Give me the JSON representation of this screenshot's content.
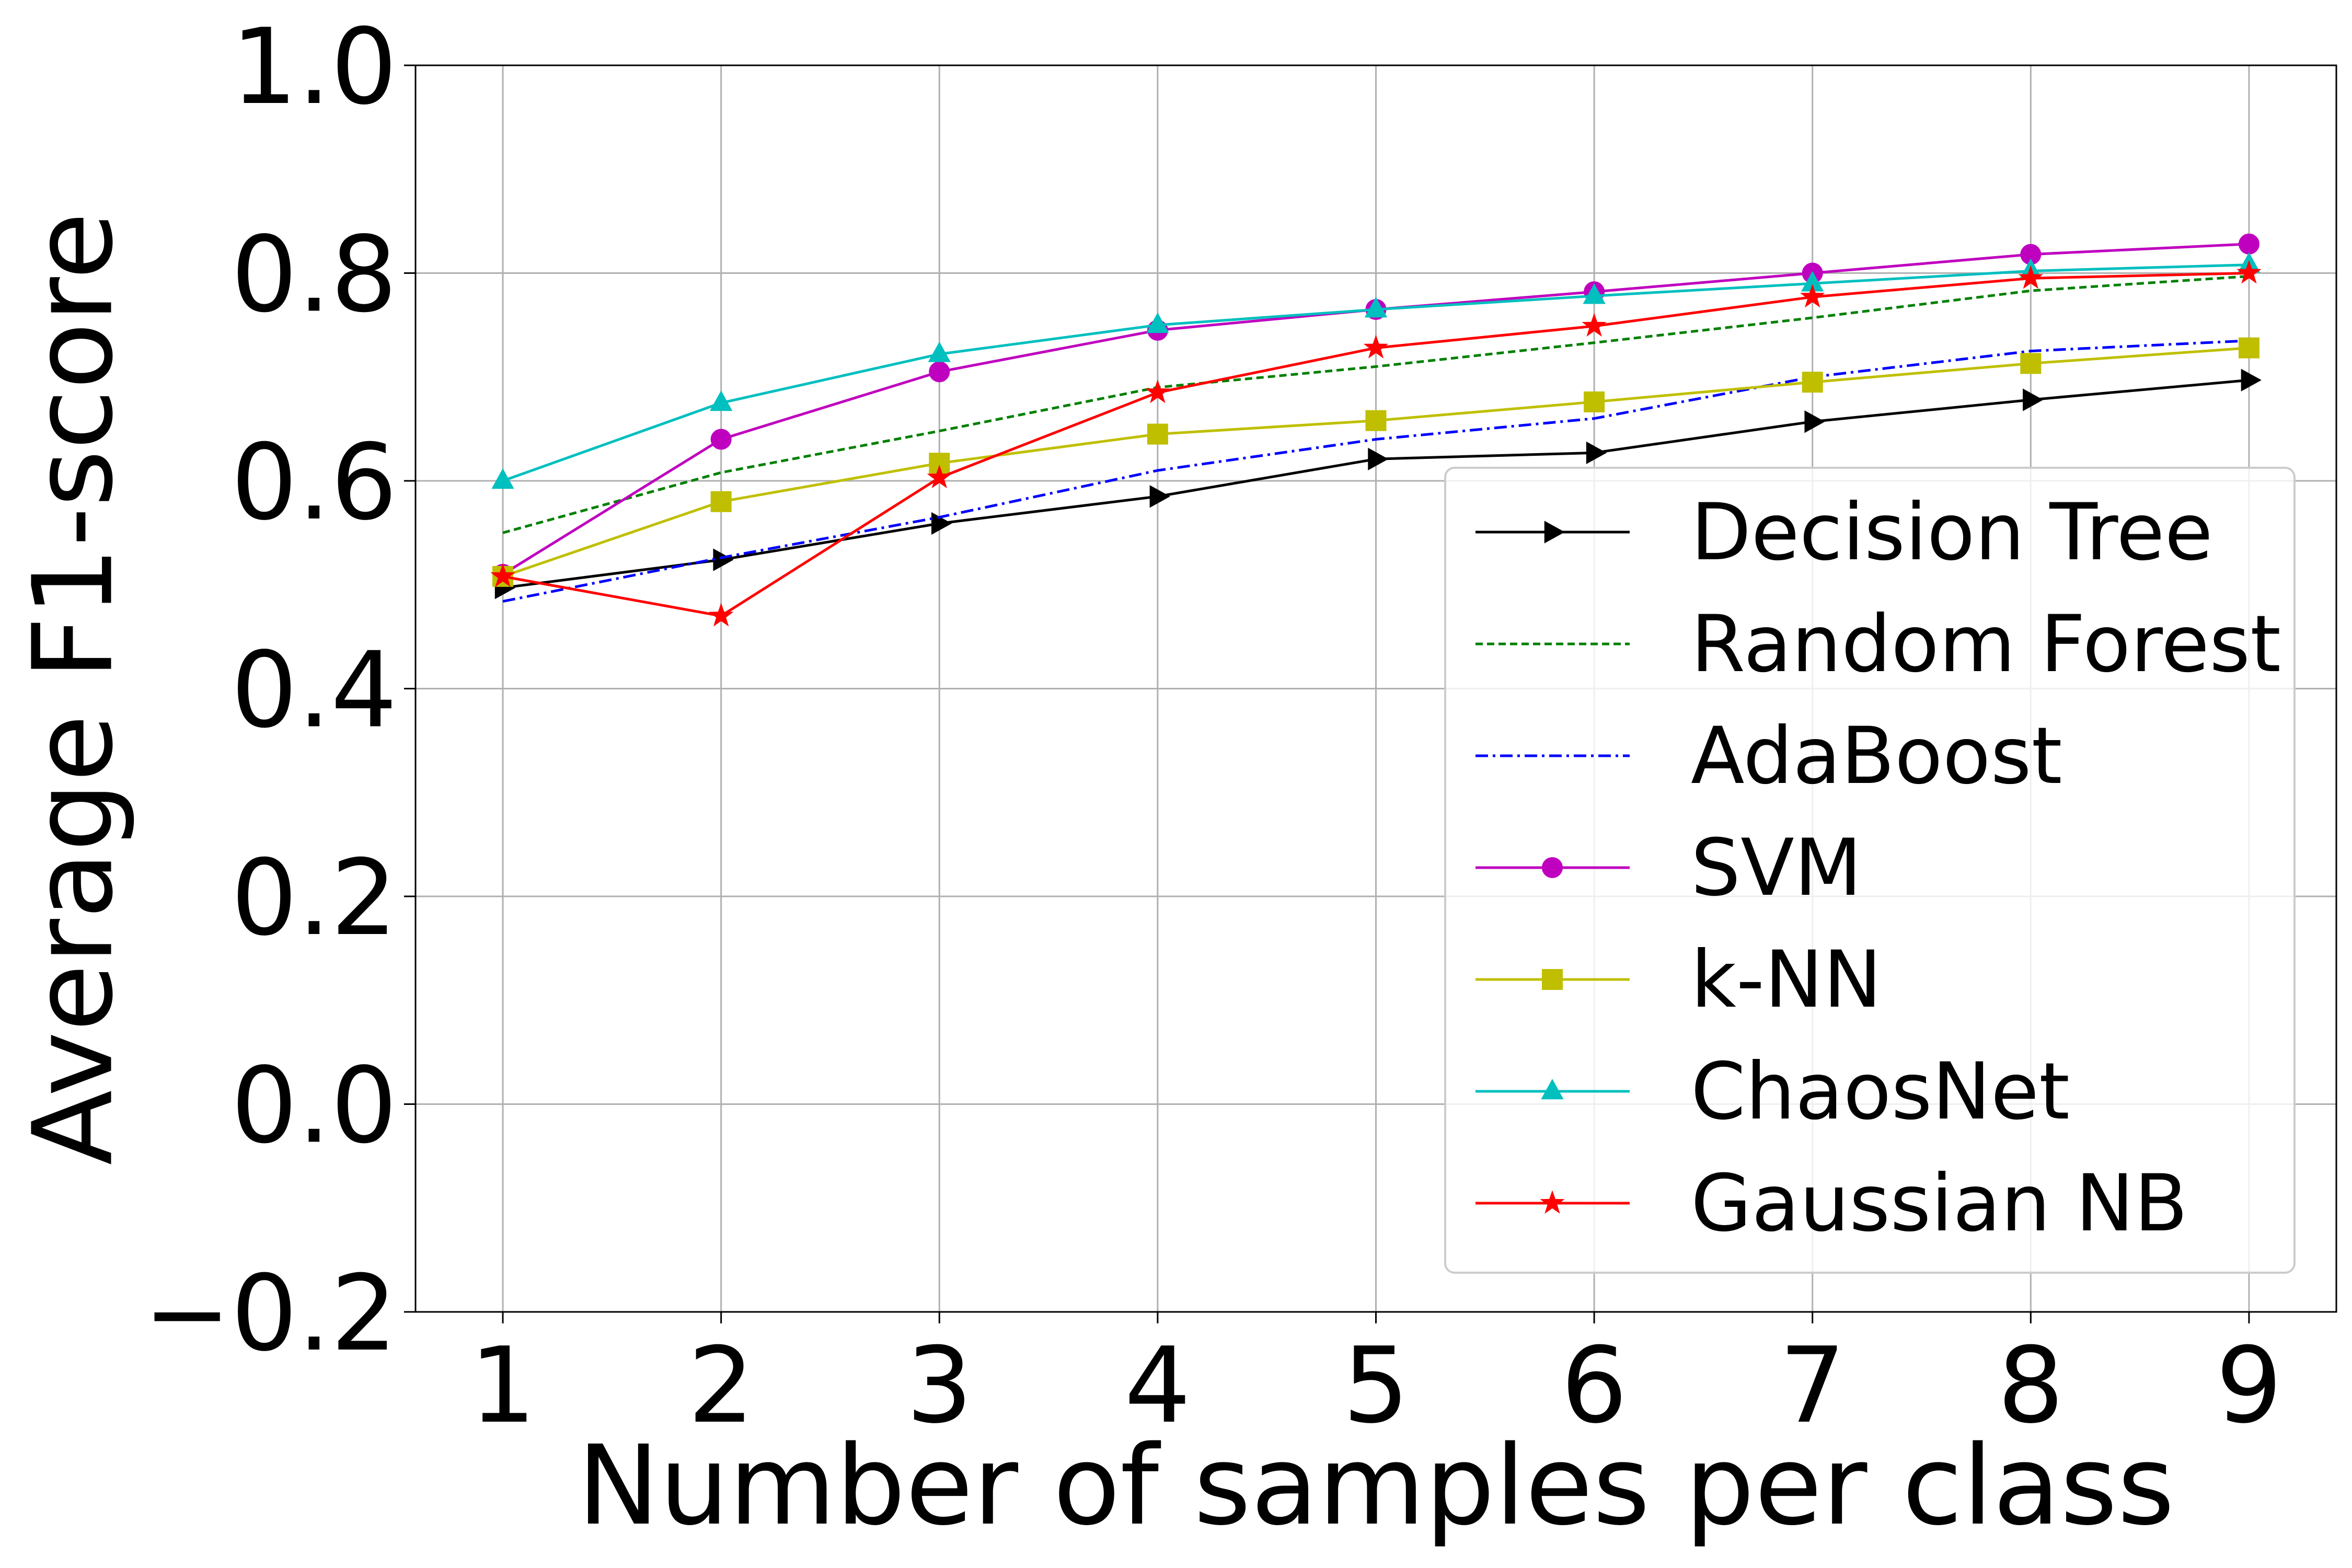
{
  "chart_data": {
    "type": "line",
    "title": "",
    "xlabel": "Number of samples per class",
    "ylabel": "Average F1-score",
    "x": [
      1,
      2,
      3,
      4,
      5,
      6,
      7,
      8,
      9
    ],
    "xlim": [
      0.6,
      9.4
    ],
    "ylim": [
      -0.2,
      1.0
    ],
    "x_tick_labels": [
      "1",
      "2",
      "3",
      "4",
      "5",
      "6",
      "7",
      "8",
      "9"
    ],
    "y_ticks": [
      -0.2,
      0.0,
      0.2,
      0.4,
      0.6,
      0.8,
      1.0
    ],
    "y_tick_labels": [
      "−0.2",
      "0.0",
      "0.2",
      "0.4",
      "0.6",
      "0.8",
      "1.0"
    ],
    "grid": true,
    "legend_position": "lower-right",
    "series": [
      {
        "name": "Decision Tree",
        "color": "#000000",
        "dash": "solid",
        "marker": "triangle-right",
        "values": [
          0.497,
          0.524,
          0.559,
          0.585,
          0.621,
          0.627,
          0.657,
          0.678,
          0.697
        ]
      },
      {
        "name": "Random Forest",
        "color": "#008000",
        "dash": "dashed",
        "marker": "none",
        "values": [
          0.55,
          0.608,
          0.648,
          0.69,
          0.71,
          0.733,
          0.757,
          0.783,
          0.797
        ]
      },
      {
        "name": "AdaBoost",
        "color": "#0000ff",
        "dash": "dashdot",
        "marker": "none",
        "values": [
          0.484,
          0.526,
          0.565,
          0.61,
          0.64,
          0.66,
          0.7,
          0.725,
          0.735
        ]
      },
      {
        "name": "SVM",
        "color": "#bf00bf",
        "dash": "solid",
        "marker": "circle",
        "values": [
          0.51,
          0.64,
          0.705,
          0.745,
          0.765,
          0.782,
          0.8,
          0.818,
          0.828
        ]
      },
      {
        "name": "k-NN",
        "color": "#bfbf00",
        "dash": "solid",
        "marker": "square",
        "values": [
          0.508,
          0.58,
          0.617,
          0.645,
          0.658,
          0.676,
          0.695,
          0.713,
          0.728
        ]
      },
      {
        "name": "ChaosNet",
        "color": "#00bfbf",
        "dash": "solid",
        "marker": "triangle-up",
        "values": [
          0.6,
          0.675,
          0.722,
          0.75,
          0.765,
          0.778,
          0.79,
          0.802,
          0.808
        ]
      },
      {
        "name": "Gaussian NB",
        "color": "#ff0000",
        "dash": "solid",
        "marker": "star",
        "values": [
          0.508,
          0.47,
          0.603,
          0.685,
          0.728,
          0.749,
          0.777,
          0.795,
          0.8
        ]
      }
    ]
  }
}
